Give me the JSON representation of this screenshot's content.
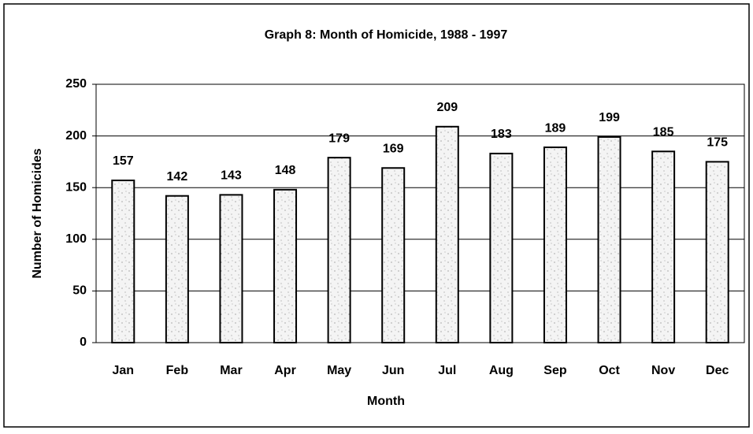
{
  "chart_data": {
    "type": "bar",
    "title": "Graph 8: Month of Homicide, 1988 - 1997",
    "x_label": "Month",
    "y_label": "Number of Homicides",
    "categories": [
      "Jan",
      "Feb",
      "Mar",
      "Apr",
      "May",
      "Jun",
      "Jul",
      "Aug",
      "Sep",
      "Oct",
      "Nov",
      "Dec"
    ],
    "values": [
      157,
      142,
      143,
      148,
      179,
      169,
      209,
      183,
      189,
      199,
      185,
      175
    ],
    "color": "#f2f2f2",
    "ylim": [
      0,
      250
    ],
    "yticks": [
      0,
      50,
      100,
      150,
      200,
      250
    ],
    "grid": true
  }
}
